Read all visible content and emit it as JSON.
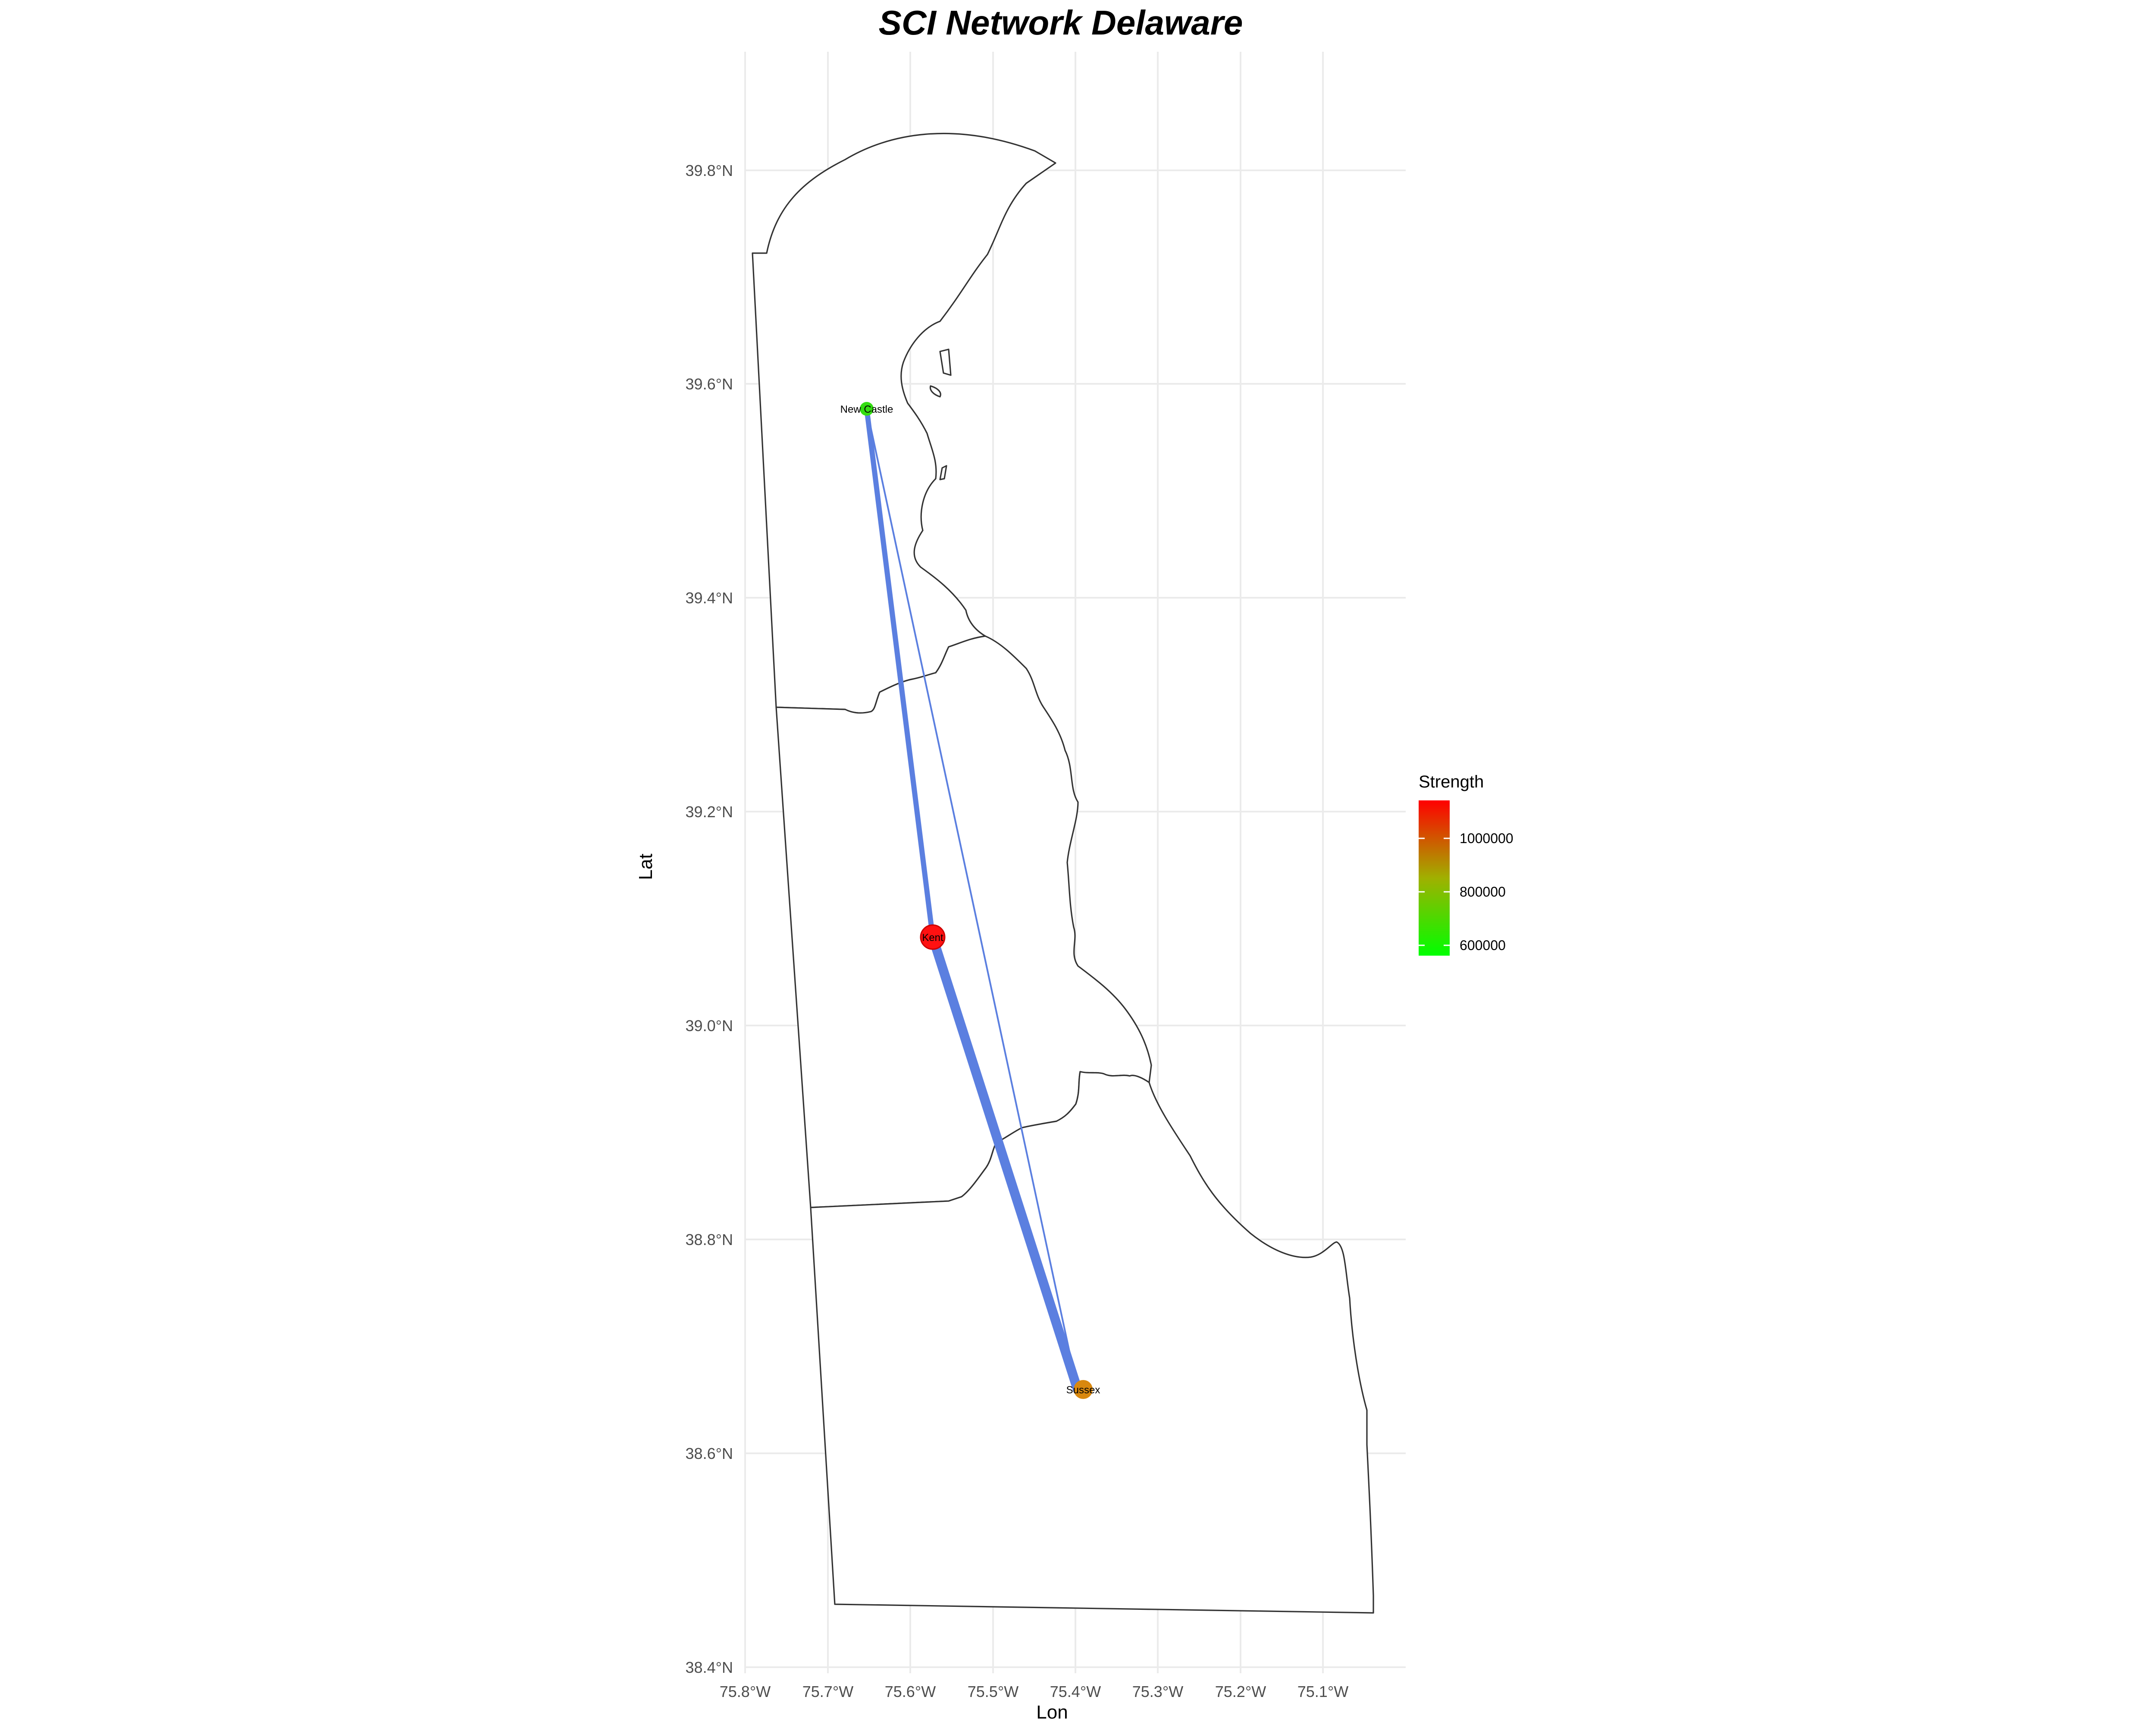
{
  "title": "SCI Network Delaware",
  "x_axis": {
    "label": "Lon",
    "ticks": [
      "75.8°W",
      "75.7°W",
      "75.6°W",
      "75.5°W",
      "75.4°W",
      "75.3°W",
      "75.2°W",
      "75.1°W"
    ]
  },
  "y_axis": {
    "label": "Lat",
    "ticks": [
      "39.8°N",
      "39.6°N",
      "39.4°N",
      "39.2°N",
      "39.0°N",
      "38.8°N",
      "38.6°N",
      "38.4°N"
    ]
  },
  "legend": {
    "title": "Strength",
    "labels": [
      "1000000",
      "800000",
      "600000"
    ],
    "color_low": "#00ff00",
    "color_high": "#ff0000"
  },
  "map": {
    "region": "Delaware",
    "counties": [
      "New Castle",
      "Kent",
      "Sussex"
    ]
  },
  "nodes": [
    {
      "label": "New Castle",
      "lon": -75.646,
      "lat": 39.575,
      "strength": 560000,
      "color": "#33dd11"
    },
    {
      "label": "Kent",
      "lon": -75.568,
      "lat": 39.085,
      "strength": 1170000,
      "color": "#ff1111"
    },
    {
      "label": "Sussex",
      "lon": -75.392,
      "lat": 38.661,
      "strength": 920000,
      "color": "#d9880f"
    }
  ],
  "edges": [
    {
      "from": "New Castle",
      "to": "Kent",
      "weight": "medium",
      "color": "#5b7fe0"
    },
    {
      "from": "Kent",
      "to": "Sussex",
      "weight": "heavy",
      "color": "#5b7fe0"
    },
    {
      "from": "New Castle",
      "to": "Sussex",
      "weight": "light",
      "color": "#5b7fe0"
    }
  ]
}
